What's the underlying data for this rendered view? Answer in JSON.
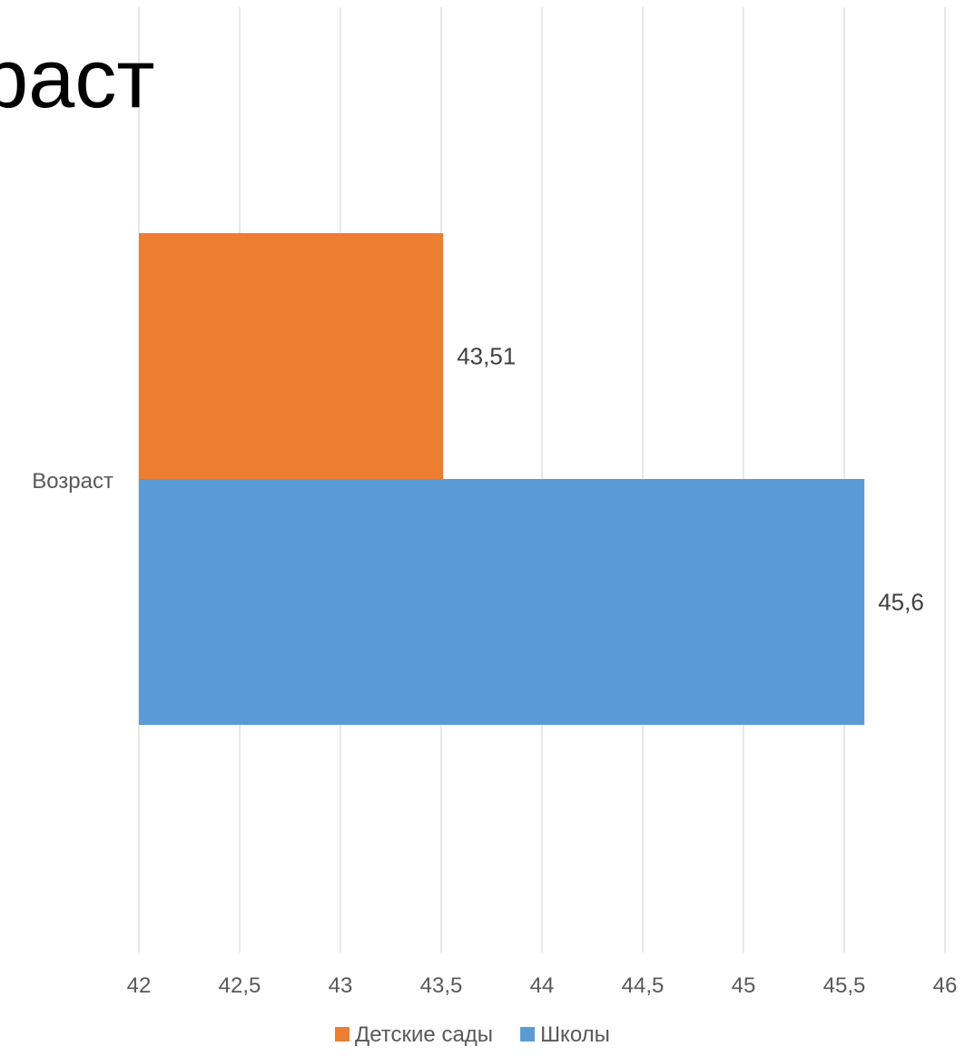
{
  "slide": {
    "title_fragment": "раст"
  },
  "chart_data": {
    "type": "bar",
    "orientation": "horizontal",
    "categories": [
      "Возраст"
    ],
    "series": [
      {
        "name": "Школы",
        "values": [
          45.6
        ],
        "color": "#5B9BD5",
        "data_label": "45,6"
      },
      {
        "name": "Детские сады",
        "values": [
          43.51
        ],
        "color": "#ED7D31",
        "data_label": "43,51"
      }
    ],
    "xlim": [
      42,
      46
    ],
    "x_ticks": [
      42,
      42.5,
      43,
      43.5,
      44,
      44.5,
      45,
      45.5,
      46
    ],
    "x_tick_labels": [
      "42",
      "42,5",
      "43",
      "43,5",
      "44",
      "44,5",
      "45",
      "45,5",
      "46"
    ],
    "grid": true,
    "gridline_color": "#D9D9D9",
    "legend": {
      "position": "bottom",
      "entries": [
        {
          "label": "Детские сады",
          "color": "#ED7D31"
        },
        {
          "label": "Школы",
          "color": "#5B9BD5"
        }
      ]
    }
  }
}
